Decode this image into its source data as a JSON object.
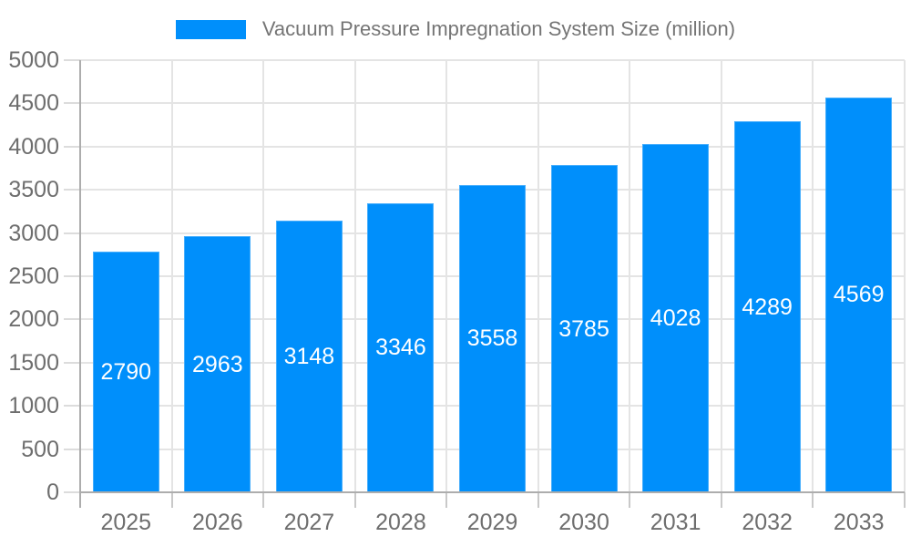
{
  "legend": {
    "label": "Vacuum Pressure Impregnation System Size (million)"
  },
  "chart_data": {
    "type": "bar",
    "title": "Vacuum Pressure Impregnation System Size (million)",
    "categories": [
      "2025",
      "2026",
      "2027",
      "2028",
      "2029",
      "2030",
      "2031",
      "2032",
      "2033"
    ],
    "values": [
      2790,
      2963,
      3148,
      3346,
      3558,
      3785,
      4028,
      4289,
      4569
    ],
    "series": [
      {
        "name": "Vacuum Pressure Impregnation System Size (million)",
        "values": [
          2790,
          2963,
          3148,
          3346,
          3558,
          3785,
          4028,
          4289,
          4569
        ]
      }
    ],
    "xlabel": "",
    "ylabel": "",
    "ylim": [
      0,
      5000
    ],
    "ytick_step": 500,
    "ytick_labels": [
      "0",
      "500",
      "1000",
      "1500",
      "2000",
      "2500",
      "3000",
      "3500",
      "4000",
      "4500",
      "5000"
    ],
    "grid": true,
    "legend_position": "top",
    "value_labels_position": "center"
  },
  "colors": {
    "bar": "#008FFB",
    "grid": "#e4e4e4",
    "axis": "#adadad",
    "tick": "#c9c9c9",
    "ytick": "#dcdcdc",
    "axis_label": "#6e6e6e",
    "legend_text": "#757575",
    "value_label": "#ffffff",
    "background": "#ffffff"
  }
}
